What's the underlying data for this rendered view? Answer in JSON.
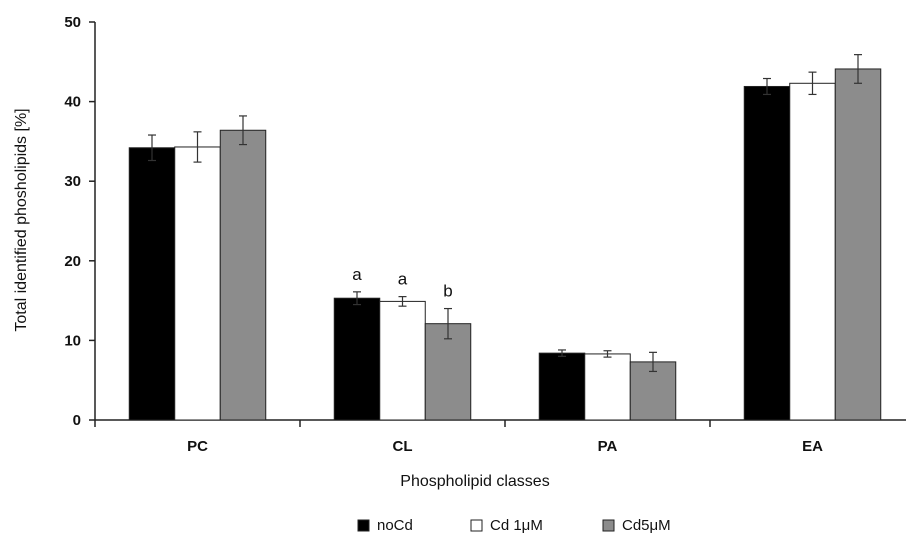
{
  "chart_data": {
    "type": "bar",
    "xlabel": "Phospholipid classes",
    "ylabel": "Total identified phosholipids [%]",
    "ylim": [
      0,
      50
    ],
    "yticks": [
      0,
      10,
      20,
      30,
      40,
      50
    ],
    "grid": false,
    "legend_position": "bottom",
    "categories": [
      "PC",
      "CL",
      "PA",
      "EA"
    ],
    "series": [
      {
        "name": "noCd",
        "color": "#000000",
        "values": [
          34.2,
          15.3,
          8.4,
          41.9
        ],
        "errors": [
          1.6,
          0.8,
          0.4,
          1.0
        ],
        "annotations": [
          "",
          "a",
          "",
          ""
        ]
      },
      {
        "name": "Cd 1μM",
        "color": "#ffffff",
        "values": [
          34.3,
          14.9,
          8.3,
          42.3
        ],
        "errors": [
          1.9,
          0.6,
          0.4,
          1.4
        ],
        "annotations": [
          "",
          "a",
          "",
          ""
        ]
      },
      {
        "name": "Cd5μM",
        "color": "#8c8c8c",
        "values": [
          36.4,
          12.1,
          7.3,
          44.1
        ],
        "errors": [
          1.8,
          1.9,
          1.2,
          1.8
        ],
        "annotations": [
          "",
          "b",
          "",
          ""
        ]
      }
    ]
  }
}
